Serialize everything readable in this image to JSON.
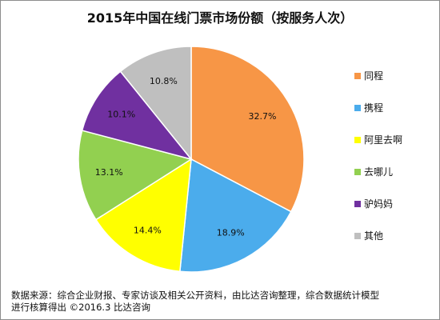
{
  "chart_data": {
    "type": "pie",
    "title": "2015年中国在线门票市场份额（按服务人次）",
    "slices": [
      {
        "label": "同程",
        "value": 32.7,
        "value_label": "32.7%",
        "color": "#F79646"
      },
      {
        "label": "携程",
        "value": 18.9,
        "value_label": "18.9%",
        "color": "#4BACEC"
      },
      {
        "label": "阿里去啊",
        "value": 14.4,
        "value_label": "14.4%",
        "color": "#FFFF00"
      },
      {
        "label": "去哪儿",
        "value": 13.1,
        "value_label": "13.1%",
        "color": "#92D050"
      },
      {
        "label": "驴妈妈",
        "value": 10.1,
        "value_label": "10.1%",
        "color": "#7030A0"
      },
      {
        "label": "其他",
        "value": 10.8,
        "value_label": "10.8%",
        "color": "#BFBFBF"
      }
    ],
    "legend_position": "right",
    "start_angle": "12 o'clock",
    "direction": "clockwise",
    "slice_border_color": "#FFFFFF"
  },
  "footer": {
    "line1": "数据来源：综合企业财报、专家访谈及相关公开资料，由比达咨询整理，综合数据统计模型",
    "line2": "进行核算得出   ©2016.3  比达咨询"
  }
}
